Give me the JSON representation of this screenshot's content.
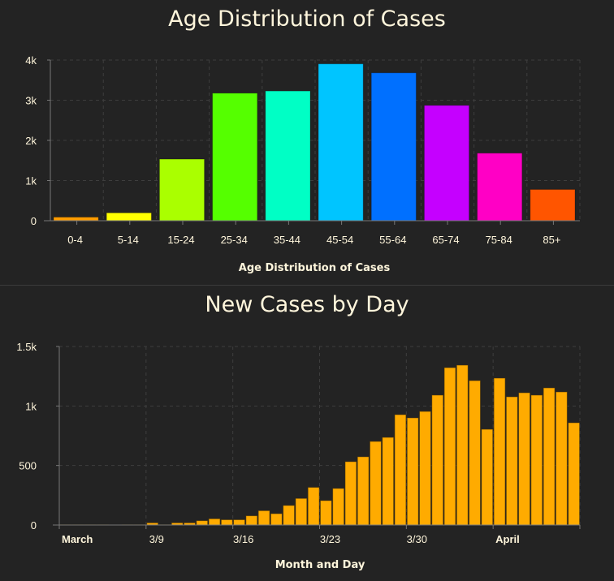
{
  "chart_data": [
    {
      "type": "bar",
      "title": "Age Distribution of Cases",
      "xlabel": "Age Distribution of Cases",
      "ylabel": "",
      "ylim": [
        0,
        4000
      ],
      "yticks": [
        {
          "v": 0,
          "label": "0"
        },
        {
          "v": 1000,
          "label": "1k"
        },
        {
          "v": 2000,
          "label": "2k"
        },
        {
          "v": 3000,
          "label": "3k"
        },
        {
          "v": 4000,
          "label": "4k"
        }
      ],
      "grid": true,
      "categories": [
        "0-4",
        "5-14",
        "15-24",
        "25-34",
        "35-44",
        "45-54",
        "55-64",
        "65-74",
        "75-84",
        "85+"
      ],
      "values": [
        89,
        196,
        1534,
        3175,
        3230,
        3905,
        3682,
        2871,
        1682,
        778
      ],
      "colors": [
        "#ff9d00",
        "#ffff00",
        "#aaff00",
        "#55ff00",
        "#00ffc5",
        "#00c5ff",
        "#0070ff",
        "#c500ff",
        "#ff00c5",
        "#ff5500"
      ]
    },
    {
      "type": "bar",
      "title": "New Cases by Day",
      "xlabel": "Month and Day",
      "ylabel": "",
      "ylim": [
        0,
        1500
      ],
      "yticks": [
        {
          "v": 0,
          "label": "0"
        },
        {
          "v": 500,
          "label": "500"
        },
        {
          "v": 1000,
          "label": "1k"
        },
        {
          "v": 1500,
          "label": "1.5k"
        }
      ],
      "grid": true,
      "xticks": [
        {
          "i": 0,
          "label": "March",
          "bold": true
        },
        {
          "i": 7,
          "label": "3/9",
          "bold": false
        },
        {
          "i": 14,
          "label": "3/16",
          "bold": false
        },
        {
          "i": 21,
          "label": "3/23",
          "bold": false
        },
        {
          "i": 28,
          "label": "3/30",
          "bold": false
        },
        {
          "i": 35,
          "label": "April",
          "bold": true
        },
        {
          "i": 42,
          "label": "",
          "bold": false
        }
      ],
      "values": [
        2,
        2,
        2,
        2,
        0,
        2,
        2,
        18,
        2,
        18,
        18,
        36,
        52,
        44,
        44,
        77,
        120,
        95,
        164,
        223,
        316,
        205,
        307,
        532,
        573,
        702,
        736,
        927,
        900,
        954,
        1091,
        1322,
        1343,
        1213,
        804,
        1234,
        1077,
        1111,
        1091,
        1152,
        1118,
        859
      ],
      "color": "#ffab00"
    }
  ]
}
